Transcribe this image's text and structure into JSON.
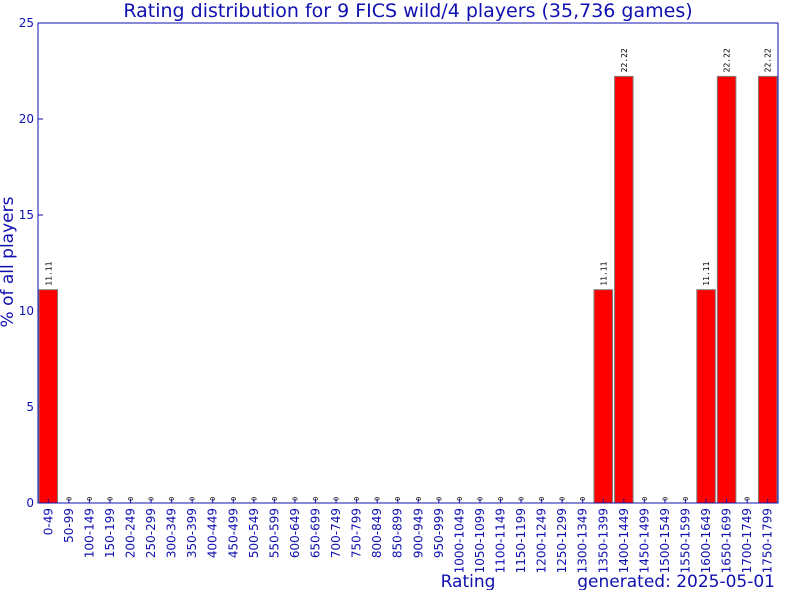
{
  "chart_data": {
    "type": "bar",
    "title": "Rating distribution for 9 FICS wild/4 players (35,736 games)",
    "xlabel": "Rating",
    "ylabel": "% of all players",
    "footer": "generated: 2025-05-01",
    "ylim": [
      0,
      25
    ],
    "yticks": [
      "0",
      "5",
      "10",
      "15",
      "20",
      "25"
    ],
    "bar_color": "#ff0000",
    "categories": [
      "0-49",
      "50-99",
      "100-149",
      "150-199",
      "200-249",
      "250-299",
      "300-349",
      "350-399",
      "400-449",
      "450-499",
      "500-549",
      "550-599",
      "600-649",
      "650-699",
      "700-749",
      "750-799",
      "800-849",
      "850-899",
      "900-949",
      "950-999",
      "1000-1049",
      "1050-1099",
      "1100-1149",
      "1150-1199",
      "1200-1249",
      "1250-1299",
      "1300-1349",
      "1350-1399",
      "1400-1449",
      "1450-1499",
      "1500-1549",
      "1550-1599",
      "1600-1649",
      "1650-1699",
      "1700-1749",
      "1750-1799"
    ],
    "values": [
      11.11,
      0,
      0,
      0,
      0,
      0,
      0,
      0,
      0,
      0,
      0,
      0,
      0,
      0,
      0,
      0,
      0,
      0,
      0,
      0,
      0,
      0,
      0,
      0,
      0,
      0,
      0,
      11.11,
      22.22,
      0,
      0,
      0,
      11.11,
      22.22,
      0,
      22.22
    ],
    "data_labels": [
      "11.11",
      "0",
      "0",
      "0",
      "0",
      "0",
      "0",
      "0",
      "0",
      "0",
      "0",
      "0",
      "0",
      "0",
      "0",
      "0",
      "0",
      "0",
      "0",
      "0",
      "0",
      "0",
      "0",
      "0",
      "0",
      "0",
      "0",
      "11.11",
      "22.22",
      "0",
      "0",
      "0",
      "11.11",
      "22.22",
      "0",
      "22.22"
    ]
  }
}
